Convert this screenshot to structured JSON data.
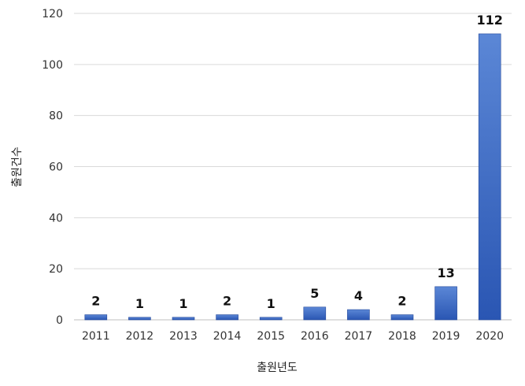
{
  "chart_data": {
    "type": "bar",
    "categories": [
      "2011",
      "2012",
      "2013",
      "2014",
      "2015",
      "2016",
      "2017",
      "2018",
      "2019",
      "2020"
    ],
    "values": [
      2,
      1,
      1,
      2,
      1,
      5,
      4,
      2,
      13,
      112
    ],
    "data_labels": [
      "2",
      "1",
      "1",
      "2",
      "1",
      "5",
      "4",
      "2",
      "13",
      "112"
    ],
    "title": "",
    "xlabel": "출원년도",
    "ylabel": "출원건수",
    "ylim": [
      0,
      120
    ],
    "yticks": [
      "0",
      "20",
      "40",
      "60",
      "80",
      "100",
      "120"
    ],
    "grid": true,
    "legend": "none",
    "colors": {
      "bar_top": "#5b87d6",
      "bar_bottom": "#2a56b3",
      "bar_stroke": "#24489a"
    }
  }
}
